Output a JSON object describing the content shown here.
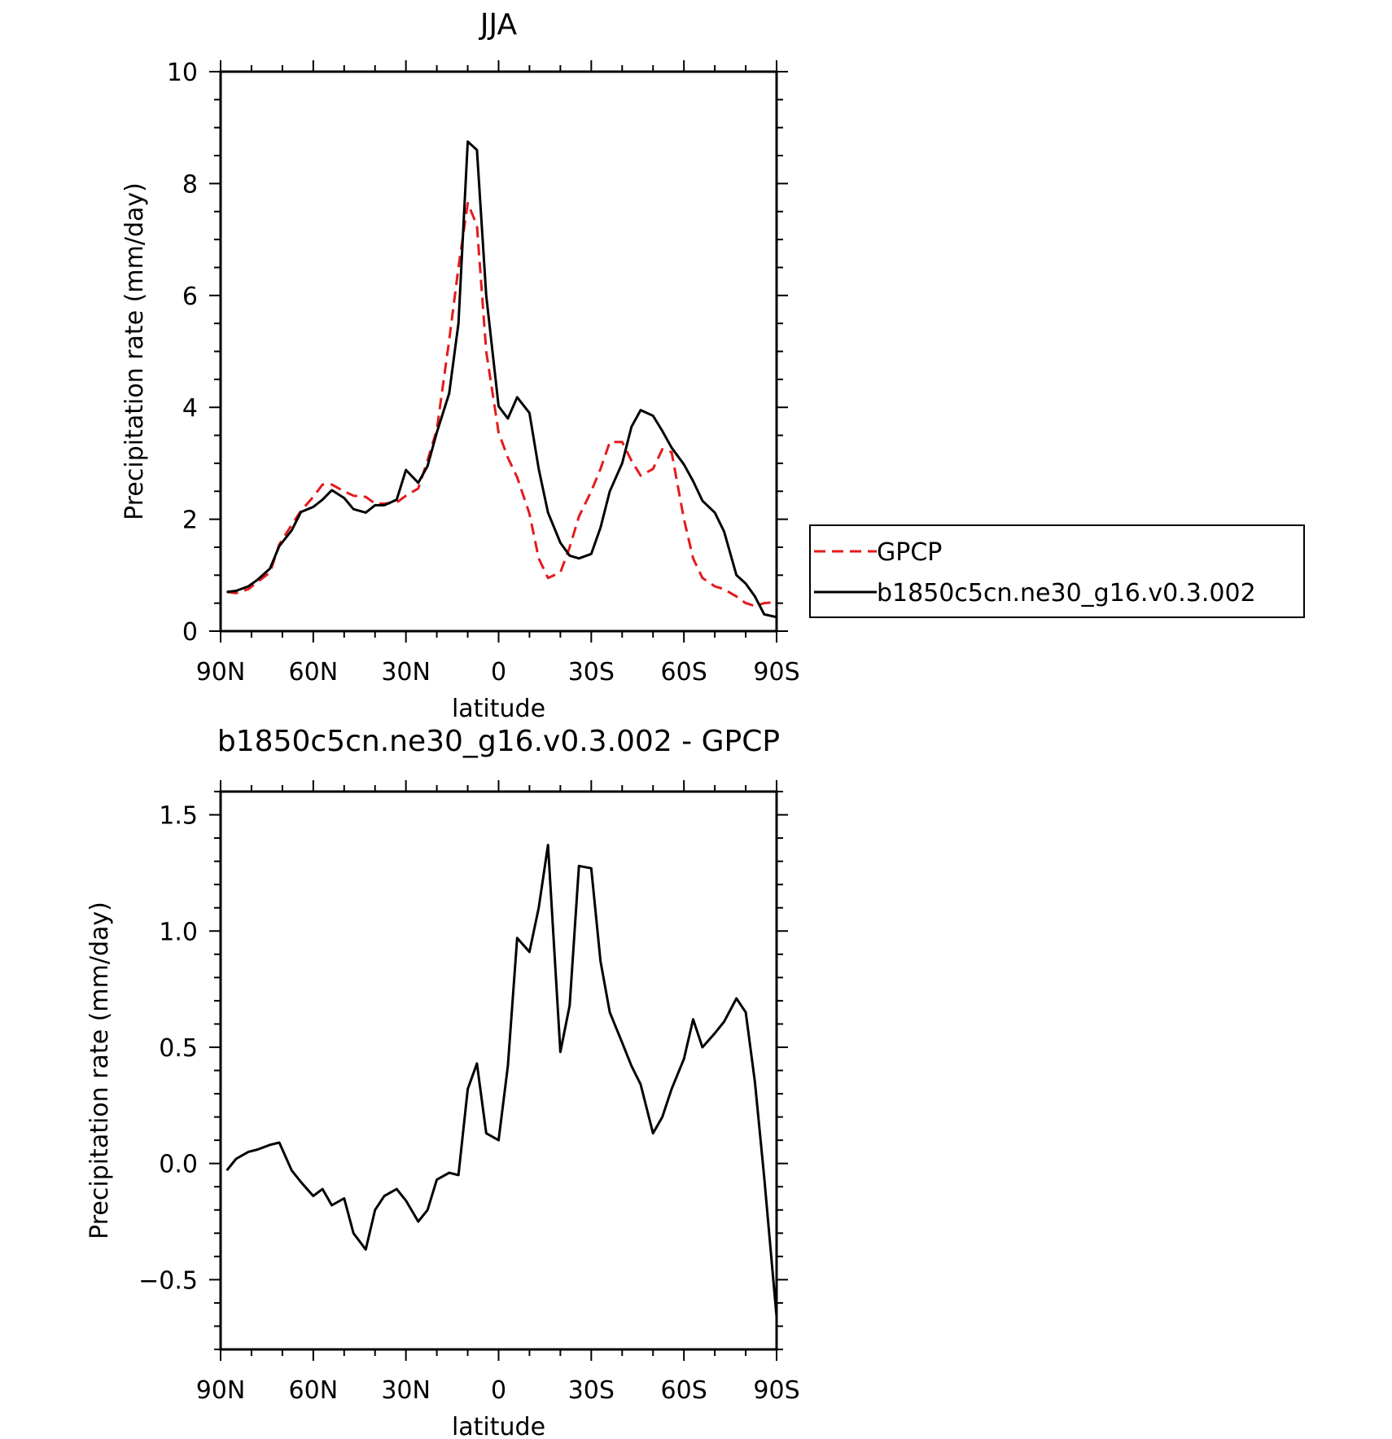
{
  "chart_data": [
    {
      "type": "line",
      "title": "JJA",
      "xlabel": "latitude",
      "ylabel": "Precipitation rate (mm/day)",
      "x_tick_labels": [
        "90N",
        "60N",
        "30N",
        "0",
        "30S",
        "60S",
        "90S"
      ],
      "y_tick_labels": [
        "0",
        "2",
        "4",
        "6",
        "8",
        "10"
      ],
      "xlim": [
        90,
        -90
      ],
      "ylim": [
        0,
        10
      ],
      "legend_position": "right",
      "series": [
        {
          "name": "GPCP",
          "style": "dashed",
          "color": "#e41a1c",
          "x": [
            88,
            85,
            81,
            78,
            74,
            71,
            67,
            64,
            60,
            57,
            54,
            50,
            47,
            43,
            40,
            37,
            33,
            30,
            26,
            23,
            20,
            16,
            13,
            10,
            7,
            4,
            0,
            -3,
            -6,
            -10,
            -13,
            -16,
            -20,
            -23,
            -26,
            -30,
            -33,
            -36,
            -40,
            -43,
            -46,
            -50,
            -53,
            -56,
            -60,
            -63,
            -66,
            -70,
            -73,
            -77,
            -80,
            -83,
            -86,
            -90
          ],
          "y": [
            0.7,
            0.68,
            0.75,
            0.88,
            1.05,
            1.55,
            1.9,
            2.15,
            2.4,
            2.62,
            2.62,
            2.5,
            2.42,
            2.4,
            2.28,
            2.28,
            2.3,
            2.42,
            2.55,
            3.05,
            3.6,
            5.2,
            6.5,
            7.65,
            7.25,
            5.0,
            3.55,
            3.1,
            2.75,
            2.1,
            1.3,
            0.95,
            1.05,
            1.5,
            2.05,
            2.5,
            2.9,
            3.38,
            3.38,
            3.05,
            2.78,
            2.9,
            3.25,
            3.2,
            2.0,
            1.3,
            0.95,
            0.8,
            0.75,
            0.62,
            0.5,
            0.45,
            0.5,
            0.52
          ]
        },
        {
          "name": "b1850c5cn.ne30_g16.v0.3.002",
          "style": "solid",
          "color": "#000000",
          "x": [
            88,
            85,
            81,
            78,
            74,
            71,
            67,
            64,
            60,
            57,
            54,
            50,
            47,
            43,
            40,
            37,
            33,
            30,
            26,
            23,
            20,
            16,
            13,
            10,
            7,
            4,
            0,
            -3,
            -6,
            -10,
            -13,
            -16,
            -20,
            -23,
            -26,
            -30,
            -33,
            -36,
            -40,
            -43,
            -46,
            -50,
            -53,
            -56,
            -60,
            -63,
            -66,
            -70,
            -73,
            -77,
            -80,
            -83,
            -86,
            -90
          ],
          "y": [
            0.7,
            0.72,
            0.8,
            0.92,
            1.12,
            1.52,
            1.8,
            2.13,
            2.22,
            2.35,
            2.52,
            2.38,
            2.18,
            2.12,
            2.25,
            2.25,
            2.35,
            2.88,
            2.65,
            2.95,
            3.55,
            4.25,
            5.5,
            8.75,
            8.6,
            6.0,
            4.02,
            3.8,
            4.18,
            3.9,
            2.9,
            2.12,
            1.58,
            1.35,
            1.3,
            1.38,
            1.85,
            2.5,
            3.0,
            3.65,
            3.95,
            3.85,
            3.58,
            3.28,
            2.98,
            2.68,
            2.33,
            2.12,
            1.78,
            1.0,
            0.85,
            0.62,
            0.3,
            0.25
          ]
        }
      ]
    },
    {
      "type": "line",
      "title": "b1850c5cn.ne30_g16.v0.3.002 - GPCP",
      "xlabel": "latitude",
      "ylabel": "Precipitation rate (mm/day)",
      "x_tick_labels": [
        "90N",
        "60N",
        "30N",
        "0",
        "30S",
        "60S",
        "90S"
      ],
      "y_tick_labels": [
        "−0.5",
        "0.0",
        "0.5",
        "1.0",
        "1.5"
      ],
      "xlim": [
        90,
        -90
      ],
      "ylim": [
        -0.8,
        1.6
      ],
      "series": [
        {
          "style": "solid",
          "color": "#000000",
          "x": [
            88,
            85,
            81,
            78,
            74,
            71,
            67,
            64,
            60,
            57,
            54,
            50,
            47,
            43,
            40,
            37,
            33,
            30,
            26,
            23,
            20,
            16,
            13,
            10,
            7,
            4,
            0,
            -3,
            -6,
            -10,
            -13,
            -16,
            -20,
            -23,
            -26,
            -30,
            -33,
            -36,
            -40,
            -43,
            -46,
            -50,
            -53,
            -56,
            -60,
            -63,
            -66,
            -70,
            -73,
            -77,
            -80,
            -83,
            -86,
            -90
          ],
          "y": [
            -0.03,
            0.02,
            0.05,
            0.06,
            0.08,
            0.09,
            -0.03,
            -0.08,
            -0.14,
            -0.11,
            -0.18,
            -0.15,
            -0.3,
            -0.37,
            -0.2,
            -0.14,
            -0.11,
            -0.16,
            -0.25,
            -0.2,
            -0.07,
            -0.04,
            -0.05,
            0.32,
            0.43,
            0.13,
            0.1,
            0.42,
            0.97,
            0.91,
            1.1,
            1.37,
            0.48,
            0.68,
            1.28,
            1.27,
            0.87,
            0.65,
            0.52,
            0.42,
            0.34,
            0.13,
            0.2,
            0.32,
            0.45,
            0.62,
            0.5,
            0.56,
            0.61,
            0.71,
            0.65,
            0.35,
            -0.06,
            -0.66
          ]
        }
      ]
    }
  ]
}
